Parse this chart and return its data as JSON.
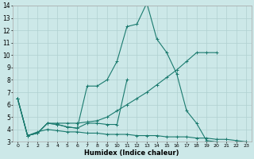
{
  "xlabel": "Humidex (Indice chaleur)",
  "xlim": [
    -0.5,
    23.5
  ],
  "ylim": [
    3,
    14
  ],
  "xticks": [
    0,
    1,
    2,
    3,
    4,
    5,
    6,
    7,
    8,
    9,
    10,
    11,
    12,
    13,
    14,
    15,
    16,
    17,
    18,
    19,
    20,
    21,
    22,
    23
  ],
  "yticks": [
    3,
    4,
    5,
    6,
    7,
    8,
    9,
    10,
    11,
    12,
    13,
    14
  ],
  "background_color": "#cce8e8",
  "grid_color": "#b0d0d0",
  "line_color": "#1a7a6e",
  "curve1_x": [
    0,
    1,
    2,
    3,
    4,
    5,
    6,
    7,
    8,
    9,
    10,
    11,
    12,
    13,
    14,
    15,
    16,
    17,
    18,
    19,
    20
  ],
  "curve1_y": [
    6.5,
    3.5,
    3.7,
    4.5,
    4.4,
    4.2,
    4.1,
    7.5,
    7.5,
    8.0,
    9.5,
    12.3,
    12.5,
    14.2,
    11.3,
    10.2,
    8.5,
    5.5,
    4.5,
    3.1,
    3.0
  ],
  "curve2_x": [
    0,
    1,
    2,
    3,
    4,
    5,
    6,
    7,
    8,
    9,
    10,
    11,
    12,
    13,
    14,
    15,
    16,
    17,
    18,
    19,
    20
  ],
  "curve2_y": [
    6.5,
    3.5,
    3.7,
    4.5,
    4.5,
    4.5,
    4.5,
    4.6,
    4.7,
    5.0,
    5.5,
    6.0,
    6.5,
    7.0,
    7.6,
    8.2,
    8.8,
    9.5,
    10.2,
    10.2,
    10.2
  ],
  "curve3_x": [
    0,
    1,
    2,
    3,
    4,
    5,
    6,
    7,
    8,
    9,
    10,
    11,
    12,
    13,
    14,
    15,
    16,
    17,
    18,
    19,
    20,
    21,
    22,
    23
  ],
  "curve3_y": [
    6.5,
    3.5,
    3.8,
    4.0,
    3.9,
    3.8,
    3.8,
    3.7,
    3.7,
    3.6,
    3.6,
    3.6,
    3.5,
    3.5,
    3.5,
    3.4,
    3.4,
    3.4,
    3.3,
    3.3,
    3.2,
    3.2,
    3.1,
    3.0
  ],
  "curve4_x": [
    0,
    1,
    2,
    3,
    4,
    5,
    6,
    7,
    8,
    9,
    10,
    11
  ],
  "curve4_y": [
    6.5,
    3.5,
    3.7,
    4.5,
    4.4,
    4.2,
    4.1,
    4.5,
    4.5,
    4.4,
    4.4,
    8.0
  ]
}
